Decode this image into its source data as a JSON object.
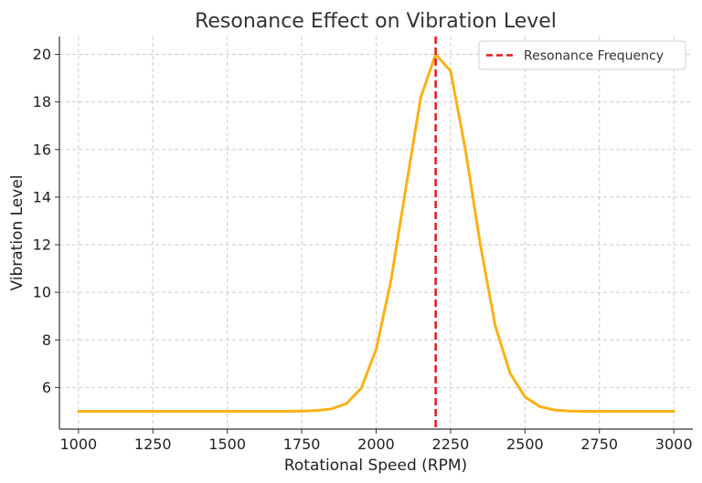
{
  "chart_data": {
    "type": "line",
    "title": "Resonance Effect on Vibration Level",
    "xlabel": "Rotational Speed (RPM)",
    "ylabel": "Vibration Level",
    "xlim": [
      936,
      3064
    ],
    "ylim": [
      4.25,
      20.75
    ],
    "xticks": [
      1000,
      1250,
      1500,
      1750,
      2000,
      2250,
      2500,
      2750,
      3000
    ],
    "yticks": [
      6,
      8,
      10,
      12,
      14,
      16,
      18,
      20
    ],
    "grid": true,
    "legend": {
      "position": "top-right"
    },
    "series": [
      {
        "name": "",
        "color": "#FBB117",
        "x": [
          1000,
          1700,
          1750,
          1800,
          1850,
          1900,
          1950,
          2000,
          2050,
          2100,
          2150,
          2200,
          2250,
          2300,
          2350,
          2400,
          2450,
          2500,
          2550,
          2600,
          2650,
          2700,
          3000
        ],
        "y": [
          5.0,
          5.0,
          5.01,
          5.03,
          5.1,
          5.32,
          5.97,
          7.6,
          10.5,
          14.4,
          18.2,
          20.0,
          19.3,
          16.0,
          12.0,
          8.6,
          6.6,
          5.6,
          5.2,
          5.05,
          5.01,
          5.0,
          5.0
        ]
      }
    ],
    "annotations": [
      {
        "type": "vline",
        "x": 2200,
        "label": "Resonance Frequency",
        "color": "#E31A1C",
        "style": "dashed"
      }
    ]
  }
}
